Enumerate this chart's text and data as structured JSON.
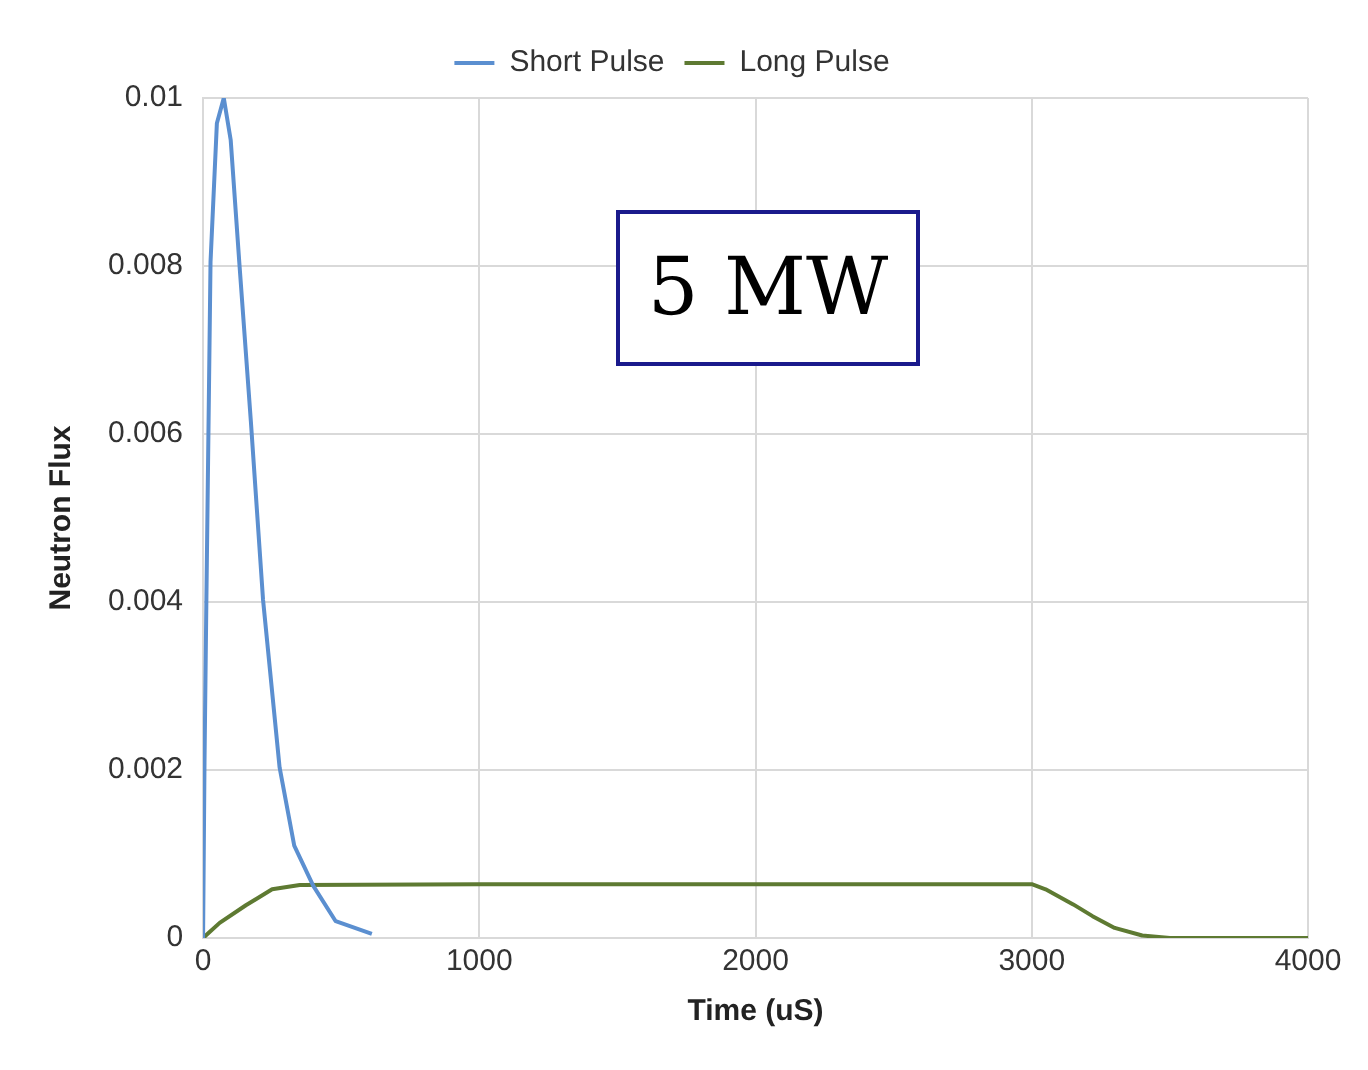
{
  "chart_data": {
    "type": "line",
    "xlabel": "Time (uS)",
    "ylabel": "Neutron Flux",
    "annotations": [
      "5 MW"
    ],
    "xlim": [
      0,
      4000
    ],
    "xticks": [
      0,
      1000,
      2000,
      3000,
      4000
    ],
    "ylim": [
      0,
      0.01
    ],
    "yticks": [
      0,
      0.002,
      0.004,
      0.006,
      0.008,
      0.01
    ],
    "grid": true,
    "legend": "top",
    "marker": "none",
    "line_style": "solid",
    "series": [
      {
        "name": "Short Pulse",
        "color": "#5b8fd0",
        "x": [
          0,
          5,
          12,
          27,
          50,
          75,
          100,
          131,
          173,
          217,
          277,
          330,
          399,
          480,
          611
        ],
        "values": [
          0,
          0.00203,
          0.00403,
          0.00805,
          0.0097,
          0.01,
          0.0095,
          0.00805,
          0.00615,
          0.00403,
          0.00203,
          0.0011,
          0.00062,
          0.0002,
          5e-05
        ]
      },
      {
        "name": "Long Pulse",
        "color": "#5e7a32",
        "x": [
          0,
          60,
          155,
          250,
          350,
          1000,
          2000,
          3000,
          3050,
          3150,
          3220,
          3300,
          3400,
          3500,
          4000
        ],
        "values": [
          0,
          0.00018,
          0.00039,
          0.00058,
          0.00063,
          0.00064,
          0.00064,
          0.00064,
          0.00058,
          0.0004,
          0.00026,
          0.00012,
          3e-05,
          0,
          0
        ]
      }
    ]
  }
}
